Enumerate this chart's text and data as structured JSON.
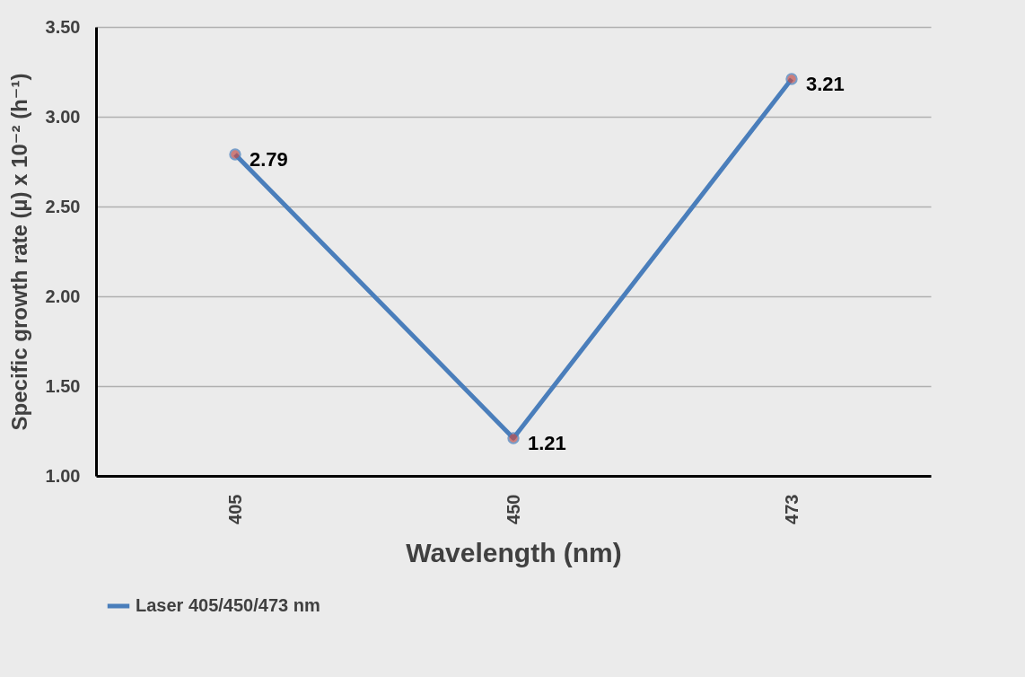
{
  "chart_data": {
    "type": "line",
    "xlabel": "Wavelength (nm)",
    "ylabel": "Specific growth rate (µ)  x 10⁻² (h⁻¹)",
    "categories": [
      "405",
      "450",
      "473"
    ],
    "series": [
      {
        "name": "Laser 405/450/473 nm",
        "color": "#4a7ebb",
        "values": [
          2.79,
          1.21,
          3.21
        ]
      }
    ],
    "ylim": [
      1,
      3.5
    ],
    "yticks": [
      {
        "value": 1,
        "label": "1.00"
      },
      {
        "value": 1.5,
        "label": "1.50"
      },
      {
        "value": 2,
        "label": "2.00"
      },
      {
        "value": 2.5,
        "label": "2.50"
      },
      {
        "value": 3,
        "label": "3.00"
      },
      {
        "value": 3.5,
        "label": "3.50"
      }
    ],
    "grid": "y",
    "legend": "bottom",
    "marker": "circle",
    "line_style": "solid",
    "data_labels": true
  }
}
